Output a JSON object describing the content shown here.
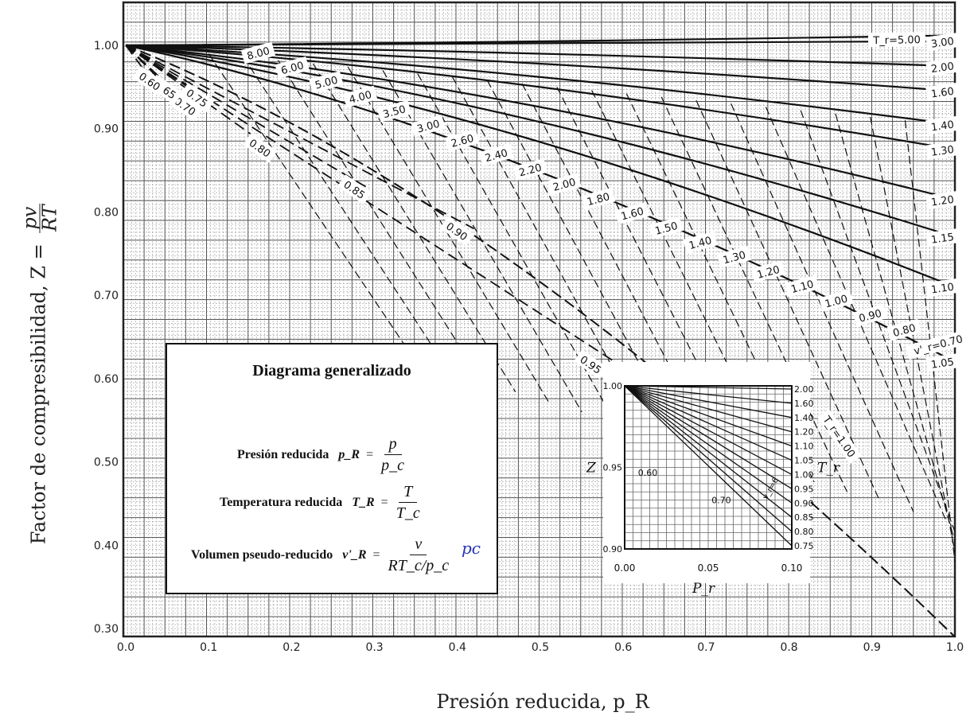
{
  "chart_data": [
    {
      "type": "line",
      "title": "",
      "xlabel": "Presión reducida, p_R",
      "ylabel": "Factor de compresibilidad, Z = pv / RT",
      "xlim": [
        0.0,
        1.0
      ],
      "ylim": [
        0.3,
        1.0
      ],
      "xticks": [
        "0.0",
        "0.1",
        "0.2",
        "0.3",
        "0.4",
        "0.5",
        "0.6",
        "0.7",
        "0.8",
        "0.9",
        "1.0"
      ],
      "yticks": [
        "0.30",
        "0.40",
        "0.50",
        "0.60",
        "0.70",
        "0.80",
        "0.90",
        "1.00"
      ],
      "grid": true,
      "temperature_lines": [
        {
          "label": "T_r=5.00",
          "z_at_1": 1.012
        },
        {
          "label": "3.00",
          "z_at_1": 1.005
        },
        {
          "label": "2.00",
          "z_at_1": 0.975
        },
        {
          "label": "1.60",
          "z_at_1": 0.945
        },
        {
          "label": "1.40",
          "z_at_1": 0.905
        },
        {
          "label": "1.30",
          "z_at_1": 0.875
        },
        {
          "label": "1.20",
          "z_at_1": 0.815
        },
        {
          "label": "1.15",
          "z_at_1": 0.77
        },
        {
          "label": "1.10",
          "z_at_1": 0.71
        },
        {
          "label": "1.05",
          "z_at_1": 0.62
        },
        {
          "label": "T_r=1.00",
          "z_at_1": 0.29
        },
        {
          "label": "0.95",
          "z_at_pr": [
            0.59,
            0.62
          ]
        },
        {
          "label": "0.90",
          "z_at_pr": [
            0.42,
            0.78
          ]
        },
        {
          "label": "0.85",
          "z_at_pr": [
            0.29,
            0.83
          ]
        },
        {
          "label": "0.80",
          "z_at_pr": [
            0.17,
            0.88
          ]
        },
        {
          "label": "0.75",
          "z_at_pr": [
            0.09,
            0.94
          ]
        },
        {
          "label": "0.70",
          "z_at_pr": [
            0.075,
            0.93
          ]
        },
        {
          "label": "0.65",
          "z_at_pr": [
            0.05,
            0.95
          ]
        },
        {
          "label": "0.60",
          "z_at_pr": [
            0.03,
            0.96
          ]
        }
      ],
      "pseudo_volume_lines": [
        "8.00",
        "6.00",
        "5.00",
        "4.00",
        "3.50",
        "3.00",
        "2.60",
        "2.40",
        "2.20",
        "2.00",
        "1.80",
        "1.60",
        "1.50",
        "1.40",
        "1.30",
        "1.20",
        "1.10",
        "1.00",
        "0.90",
        "0.80",
        "v'_r=0.70"
      ],
      "annotations": {
        "tr5": "T_r=5.00",
        "tr1": "T_r=1.00",
        "vr": "v'_r=0.70"
      }
    },
    {
      "type": "line",
      "title": "",
      "xlabel": "P_r",
      "ylabel": "Z",
      "right_label": "T_r",
      "xlim": [
        0.0,
        0.1
      ],
      "ylim": [
        0.9,
        1.0
      ],
      "xticks": [
        "0.00",
        "0.05",
        "0.10"
      ],
      "yticks_left": [
        "1.00",
        "0.95",
        "0.90"
      ],
      "tr_labels_right": [
        "2.00",
        "1.60",
        "1.40",
        "1.20",
        "1.10",
        "1.05",
        "1.00",
        "0.95",
        "0.90",
        "0.85",
        "0.80",
        "0.75"
      ],
      "inner_labels": {
        "a": "0.60",
        "b": "0.70",
        "c": "v_r=6"
      },
      "grid": true
    }
  ],
  "infobox": {
    "title": "Diagrama generalizado",
    "pressure_label": "Presión reducida",
    "pressure_sym": "p_R",
    "pressure_num": "p",
    "pressure_den": "p_c",
    "temperature_label": "Temperatura reducida",
    "temperature_sym": "T_R",
    "temperature_num": "T",
    "temperature_den": "T_c",
    "volume_label": "Volumen pseudo-reducido",
    "volume_sym": "v'_R",
    "volume_num": "v",
    "volume_den": "RT_c/p_c",
    "equals": "="
  },
  "axis_titles": {
    "y_prefix": "Factor de compresibilidad, Z =",
    "y_num": "pv",
    "y_den": "RT",
    "x": "Presión reducida, p_R"
  },
  "handwriting": {
    "pc_note": "pc"
  },
  "colors": {
    "grid_minor": "#9a9a9a",
    "grid_major": "#222222",
    "curve": "#111111",
    "ink_blue": "#2233bb"
  }
}
